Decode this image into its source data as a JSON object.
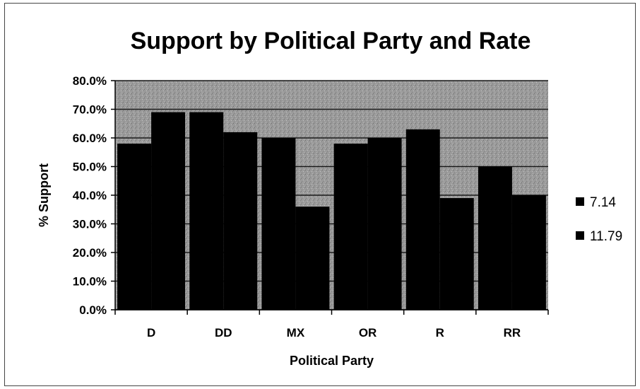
{
  "chart_data": {
    "type": "bar",
    "title": "Support by Political Party and Rate",
    "xlabel": "Political Party",
    "ylabel": "% Support",
    "categories": [
      "D",
      "DD",
      "MX",
      "OR",
      "R",
      "RR"
    ],
    "series": [
      {
        "name": "7.14",
        "values": [
          0.58,
          0.69,
          0.6,
          0.58,
          0.63,
          0.5
        ]
      },
      {
        "name": "11.79",
        "values": [
          0.69,
          0.62,
          0.36,
          0.6,
          0.39,
          0.4
        ]
      }
    ],
    "ylim": [
      0,
      0.8
    ],
    "yticks": [
      "0.0%",
      "10.0%",
      "20.0%",
      "30.0%",
      "40.0%",
      "50.0%",
      "60.0%",
      "70.0%",
      "80.0%"
    ],
    "grid": true,
    "legend": "right",
    "colors": {
      "bar": "#000000",
      "plot_background": "#9a9a9a",
      "gridline": "#1a1a1a"
    }
  }
}
